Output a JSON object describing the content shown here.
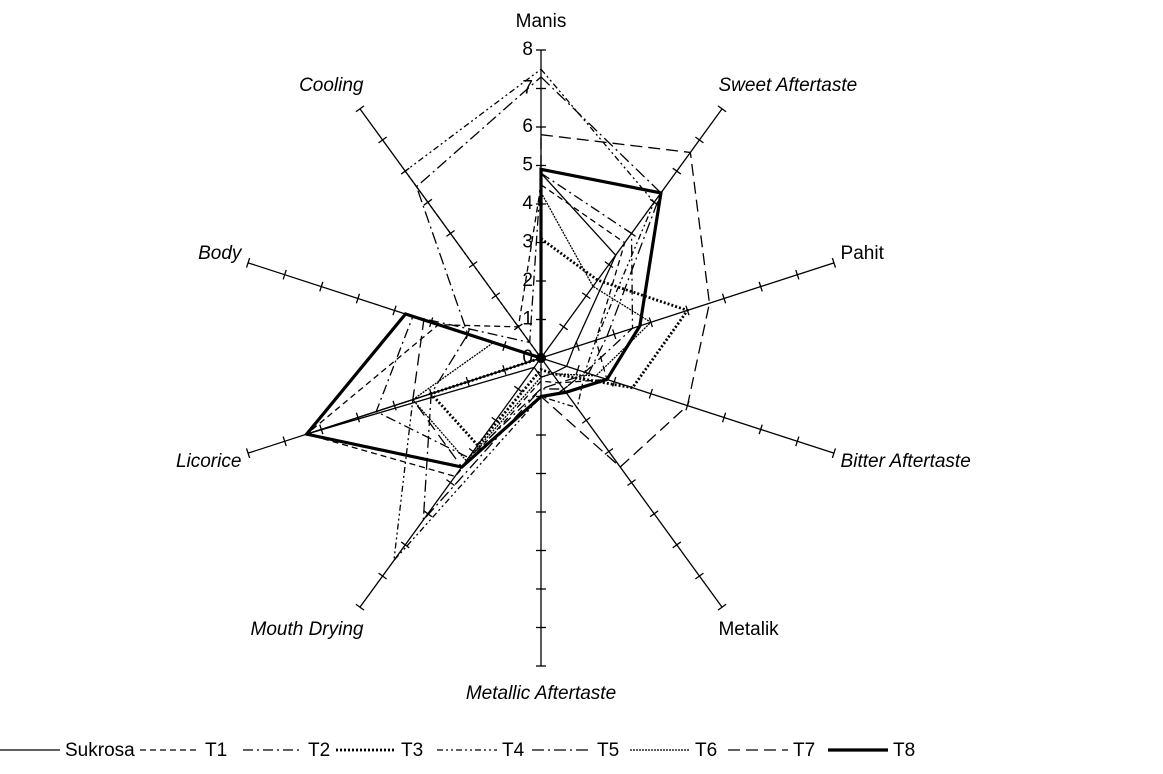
{
  "chart_data": {
    "type": "radar",
    "categories": [
      "Manis",
      "Sweet Aftertaste",
      "Pahit",
      "Bitter Aftertaste",
      "Metalik",
      "Metallic Aftertaste",
      "Mouth Drying",
      "Licorice",
      "Body",
      "Cooling"
    ],
    "ylim": [
      0,
      8
    ],
    "yticks": [
      0,
      1,
      2,
      3,
      4,
      5,
      6,
      7,
      8
    ],
    "series": [
      {
        "name": "Sukrosa",
        "color": "#000000",
        "values": [
          4.8,
          3.3,
          0.9,
          0.7,
          0.5,
          0.5,
          0.3,
          6.4,
          0,
          0
        ]
      },
      {
        "name": "T1",
        "color": "#000000",
        "values": [
          4.5,
          3.7,
          1.5,
          1.8,
          0.8,
          0.6,
          3.8,
          6.4,
          2.8,
          1.0
        ]
      },
      {
        "name": "T2",
        "color": "#000000",
        "values": [
          4.8,
          4.0,
          2.5,
          1.2,
          1.0,
          0.8,
          3.2,
          4.5,
          3.5,
          0.5
        ]
      },
      {
        "name": "T3",
        "color": "#000000",
        "values": [
          3.1,
          2.5,
          4.0,
          2.5,
          0.5,
          0.3,
          2.8,
          3.0,
          0,
          0
        ]
      },
      {
        "name": "T4",
        "color": "#000000",
        "values": [
          7.5,
          5.0,
          1.5,
          1.2,
          1.6,
          1.0,
          6.5,
          3.5,
          0,
          6.0
        ]
      },
      {
        "name": "T5",
        "color": "#000000",
        "values": [
          7.3,
          5.3,
          1.8,
          1.3,
          0.8,
          0.8,
          5.2,
          3.0,
          2.0,
          5.5
        ]
      },
      {
        "name": "T6",
        "color": "#000000",
        "values": [
          4.3,
          2.3,
          3.0,
          1.5,
          0.5,
          0.5,
          3.3,
          3.5,
          1.3,
          0
        ]
      },
      {
        "name": "T7",
        "color": "#000000",
        "values": [
          5.8,
          6.6,
          4.6,
          4.0,
          3.5,
          1.0,
          3.5,
          3.5,
          3.2,
          0
        ]
      },
      {
        "name": "T8",
        "color": "#000000",
        "values": [
          4.9,
          5.3,
          2.7,
          1.8,
          1.1,
          1.0,
          3.5,
          6.4,
          3.7,
          0
        ]
      }
    ]
  }
}
